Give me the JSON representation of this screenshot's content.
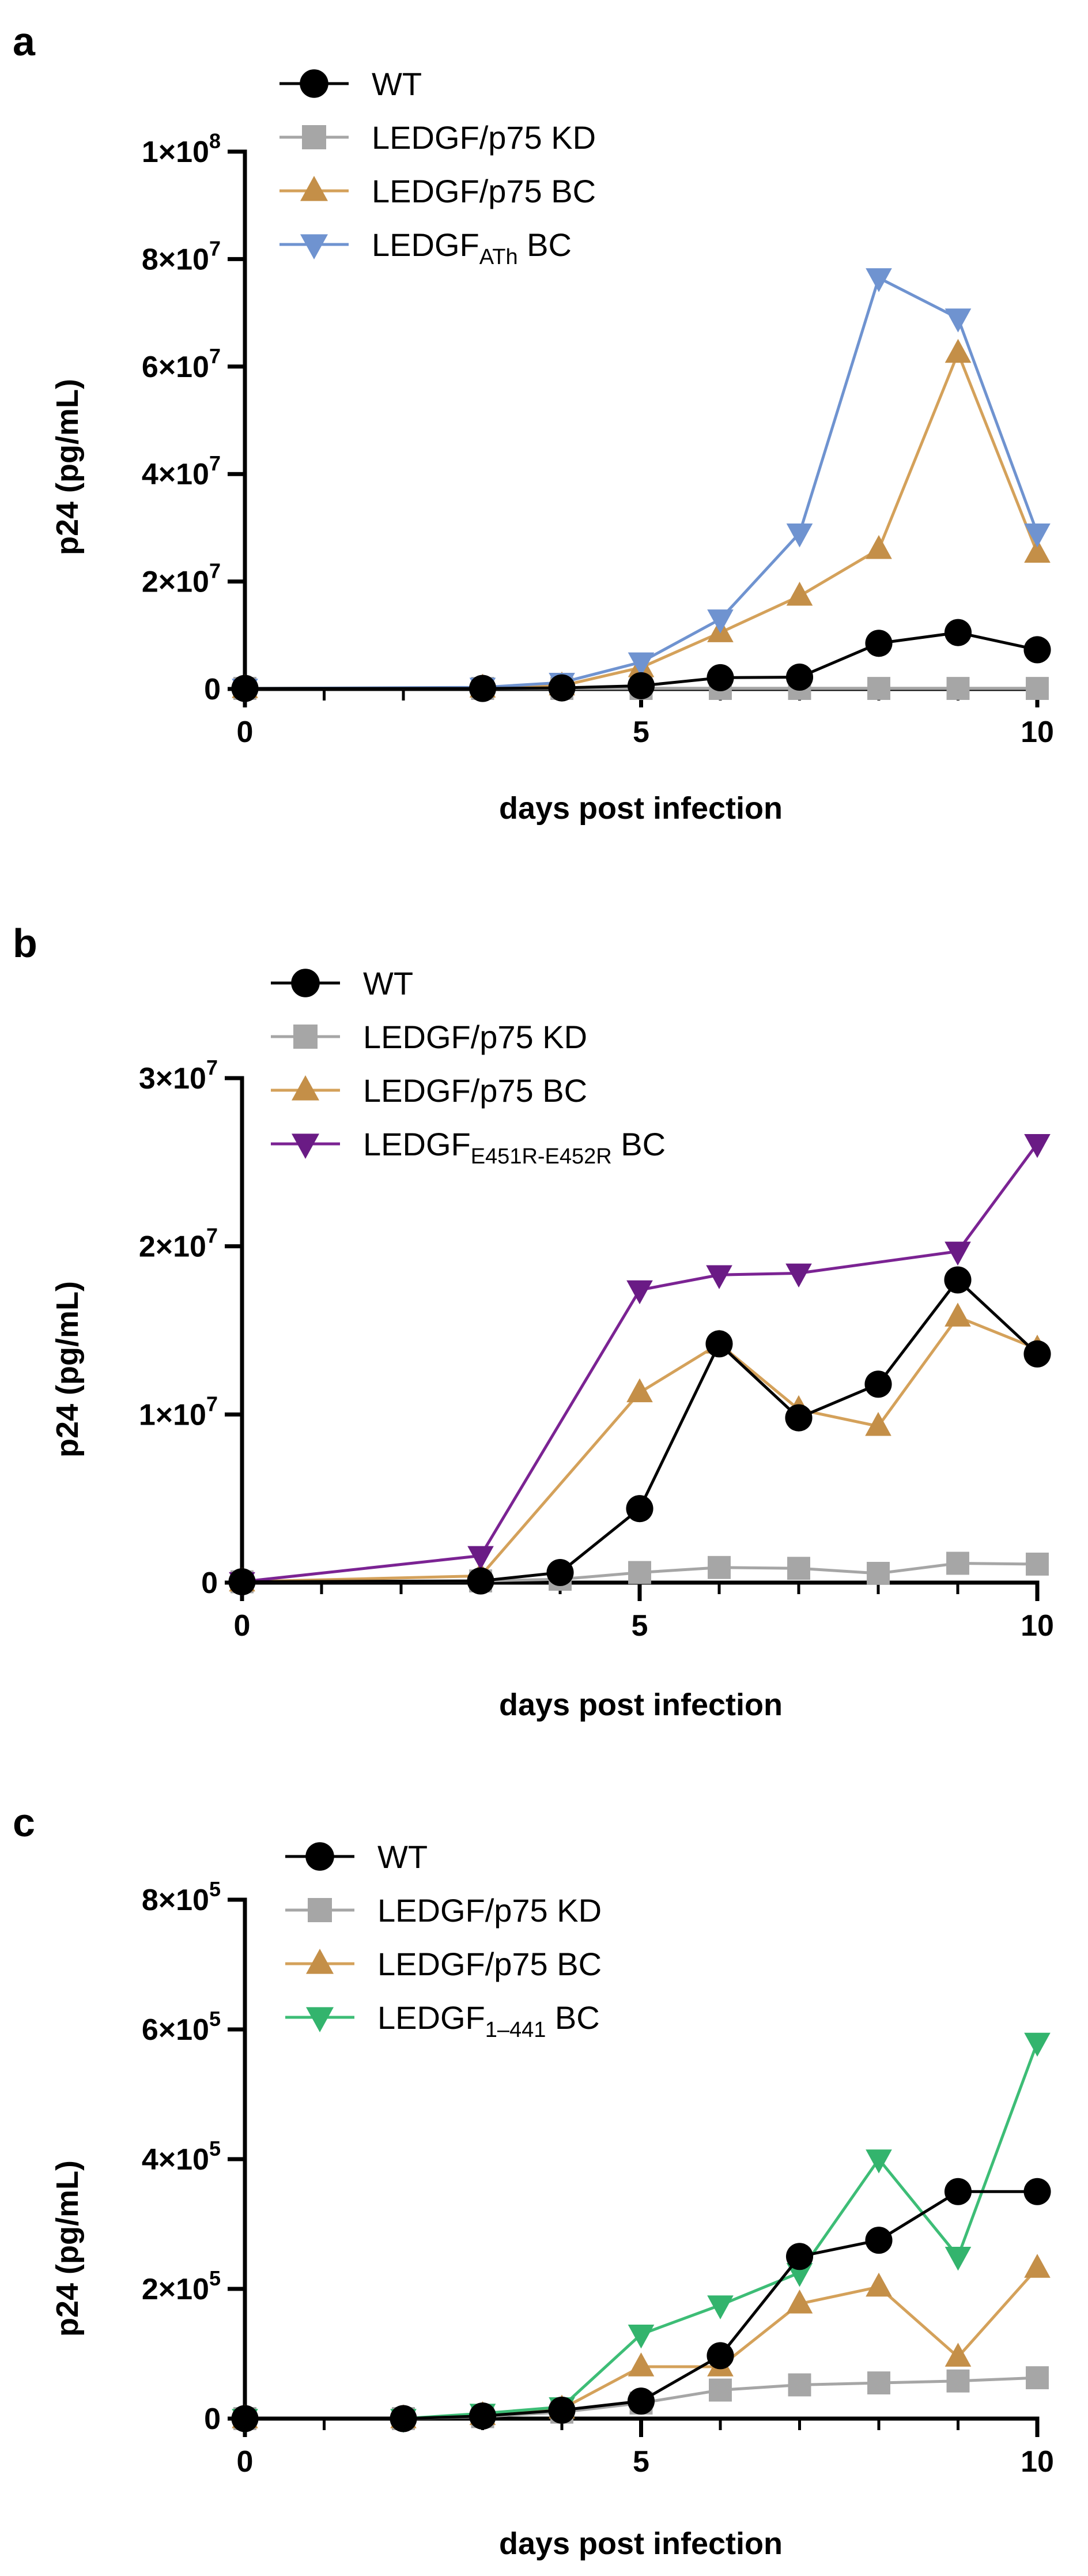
{
  "figure": {
    "panels_order": [
      "a",
      "b",
      "c"
    ]
  },
  "chart_data": [
    {
      "panel": "a",
      "type": "line",
      "xlabel": "days post infection",
      "ylabel": "p24 (pg/mL)",
      "xlim": [
        0,
        10
      ],
      "ylim": [
        0,
        100000000
      ],
      "xticks": [
        0,
        5,
        10
      ],
      "xtick_labels": [
        "0",
        "5",
        "10"
      ],
      "yticks": [
        0,
        20000000,
        40000000,
        60000000,
        80000000,
        100000000
      ],
      "ytick_labels": [
        {
          "base": "0",
          "exp": ""
        },
        {
          "base": "2×10",
          "exp": "7"
        },
        {
          "base": "4×10",
          "exp": "7"
        },
        {
          "base": "6×10",
          "exp": "7"
        },
        {
          "base": "8×10",
          "exp": "7"
        },
        {
          "base": "1×10",
          "exp": "8"
        }
      ],
      "series": [
        {
          "name": "WT",
          "sub": "",
          "suffix": "",
          "marker": "circle",
          "color": "#000000",
          "markerColor": "#000000",
          "x": [
            0,
            3,
            4,
            5,
            6,
            7,
            8,
            9,
            10
          ],
          "values": [
            100000,
            100000,
            200000,
            600000,
            2100000,
            2200000,
            8500000,
            10500000,
            7300000
          ]
        },
        {
          "name": "LEDGF/p75 KD",
          "sub": "",
          "suffix": "",
          "marker": "square",
          "color": "#a6a6a6",
          "markerColor": "#a6a6a6",
          "x": [
            0,
            3,
            4,
            5,
            6,
            7,
            8,
            9,
            10
          ],
          "values": [
            100000,
            100000,
            100000,
            100000,
            100000,
            100000,
            100000,
            100000,
            100000
          ]
        },
        {
          "name": "LEDGF/p75 BC",
          "sub": "",
          "suffix": "",
          "marker": "triangle-up",
          "color": "#d4a15a",
          "markerColor": "#c48f48",
          "x": [
            0,
            3,
            4,
            5,
            6,
            7,
            8,
            9,
            10
          ],
          "values": [
            100000,
            200000,
            600000,
            4000000,
            10500000,
            17300000,
            26000000,
            62500000,
            25300000
          ]
        },
        {
          "name": "LEDGF",
          "sub": "ATh",
          "suffix": " BC",
          "marker": "triangle-down",
          "color": "#6f93d0",
          "markerColor": "#6f93d0",
          "x": [
            0,
            3,
            4,
            5,
            6,
            7,
            8,
            9,
            10
          ],
          "values": [
            100000,
            300000,
            1200000,
            5000000,
            13000000,
            29000000,
            76500000,
            69000000,
            29000000
          ]
        }
      ]
    },
    {
      "panel": "b",
      "type": "line",
      "xlabel": "days post infection",
      "ylabel": "p24 (pg/mL)",
      "xlim": [
        0,
        10
      ],
      "ylim": [
        0,
        30000000
      ],
      "xticks": [
        0,
        5,
        10
      ],
      "xtick_labels": [
        "0",
        "5",
        "10"
      ],
      "yticks": [
        0,
        10000000,
        20000000,
        30000000
      ],
      "ytick_labels": [
        {
          "base": "0",
          "exp": ""
        },
        {
          "base": "1×10",
          "exp": "7"
        },
        {
          "base": "2×10",
          "exp": "7"
        },
        {
          "base": "3×10",
          "exp": "7"
        }
      ],
      "series": [
        {
          "name": "WT",
          "sub": "",
          "suffix": "",
          "marker": "circle",
          "color": "#000000",
          "markerColor": "#000000",
          "x": [
            0,
            3,
            4,
            5,
            6,
            7,
            8,
            9,
            10
          ],
          "values": [
            50000,
            100000,
            600000,
            4400000,
            14200000,
            9800000,
            11800000,
            18000000,
            13600000
          ]
        },
        {
          "name": "LEDGF/p75 KD",
          "sub": "",
          "suffix": "",
          "marker": "square",
          "color": "#a6a6a6",
          "markerColor": "#a6a6a6",
          "x": [
            0,
            3,
            4,
            5,
            6,
            7,
            8,
            9,
            10
          ],
          "values": [
            50000,
            100000,
            200000,
            600000,
            900000,
            850000,
            550000,
            1150000,
            1100000
          ]
        },
        {
          "name": "LEDGF/p75 BC",
          "sub": "",
          "suffix": "",
          "marker": "triangle-up",
          "color": "#d4a15a",
          "markerColor": "#c48f48",
          "x": [
            0,
            3,
            5,
            6,
            7,
            8,
            9,
            10
          ],
          "values": [
            50000,
            400000,
            11300000,
            14200000,
            10300000,
            9300000,
            15800000,
            13900000
          ]
        },
        {
          "name": "LEDGF",
          "sub": "E451R-E452R",
          "suffix": " BC",
          "marker": "triangle-down",
          "color": "#7b2393",
          "markerColor": "#6a1b85",
          "x": [
            0,
            3,
            5,
            6,
            7,
            9,
            10
          ],
          "values": [
            50000,
            1600000,
            17400000,
            18300000,
            18400000,
            19700000,
            26100000
          ]
        }
      ]
    },
    {
      "panel": "c",
      "type": "line",
      "xlabel": "days post infection",
      "ylabel": "p24 (pg/mL)",
      "xlim": [
        0,
        10
      ],
      "ylim": [
        0,
        800000
      ],
      "xticks": [
        0,
        5,
        10
      ],
      "xtick_labels": [
        "0",
        "5",
        "10"
      ],
      "yticks": [
        0,
        200000,
        400000,
        600000,
        800000
      ],
      "ytick_labels": [
        {
          "base": "0",
          "exp": ""
        },
        {
          "base": "2×10",
          "exp": "5"
        },
        {
          "base": "4×10",
          "exp": "5"
        },
        {
          "base": "6×10",
          "exp": "5"
        },
        {
          "base": "8×10",
          "exp": "5"
        }
      ],
      "series": [
        {
          "name": "WT",
          "sub": "",
          "suffix": "",
          "marker": "circle",
          "color": "#000000",
          "markerColor": "#000000",
          "x": [
            0,
            2,
            3,
            4,
            5,
            6,
            7,
            8,
            9,
            10
          ],
          "values": [
            0,
            0,
            4000,
            13000,
            27000,
            97000,
            250000,
            275000,
            350000,
            350000
          ]
        },
        {
          "name": "LEDGF/p75 KD",
          "sub": "",
          "suffix": "",
          "marker": "square",
          "color": "#a6a6a6",
          "markerColor": "#a6a6a6",
          "x": [
            0,
            2,
            3,
            4,
            5,
            6,
            7,
            8,
            9,
            10
          ],
          "values": [
            0,
            0,
            3000,
            10000,
            24000,
            44000,
            52000,
            55000,
            58000,
            63000
          ]
        },
        {
          "name": "LEDGF/p75 BC",
          "sub": "",
          "suffix": "",
          "marker": "triangle-up",
          "color": "#d4a15a",
          "markerColor": "#c48f48",
          "x": [
            0,
            2,
            3,
            4,
            5,
            6,
            7,
            8,
            9,
            10
          ],
          "values": [
            0,
            0,
            5000,
            15000,
            80000,
            80000,
            177000,
            203000,
            95000,
            232000
          ]
        },
        {
          "name": "LEDGF",
          "sub": "1–441",
          "suffix": " BC",
          "marker": "triangle-down",
          "color": "#3dbd76",
          "markerColor": "#33b46d",
          "x": [
            0,
            2,
            3,
            4,
            5,
            6,
            7,
            8,
            9,
            10
          ],
          "values": [
            0,
            0,
            8000,
            18000,
            130000,
            175000,
            225000,
            400000,
            250000,
            580000
          ]
        }
      ]
    }
  ]
}
